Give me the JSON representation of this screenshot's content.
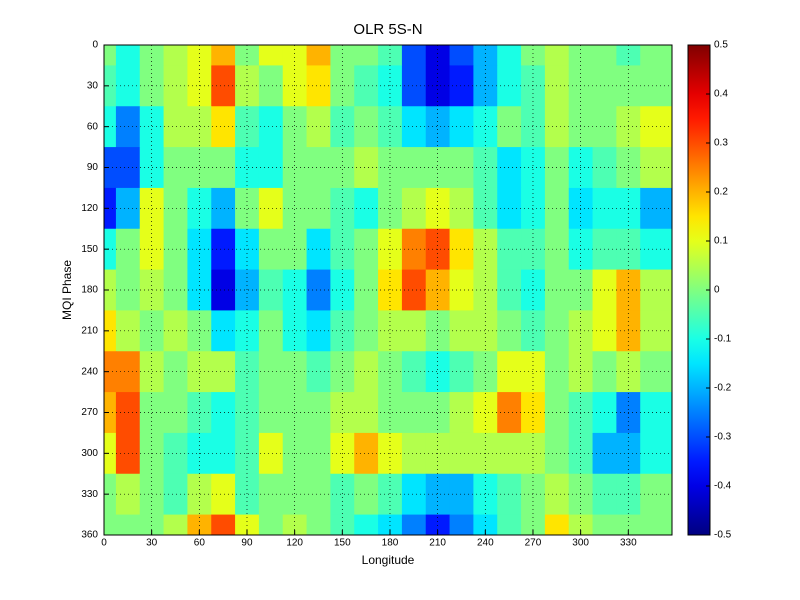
{
  "chart_data": {
    "type": "contour",
    "title": "OLR 5S-N",
    "x_label": "Longitude",
    "y_label": "MQI Phase",
    "x": [
      0,
      15,
      30,
      45,
      60,
      75,
      90,
      105,
      120,
      135,
      150,
      165,
      180,
      195,
      210,
      225,
      240,
      255,
      270,
      285,
      300,
      315,
      330,
      345
    ],
    "y": [
      0,
      30,
      60,
      90,
      120,
      150,
      180,
      210,
      240,
      270,
      300,
      330,
      360
    ],
    "z": [
      [
        0,
        -0.1,
        0,
        0.05,
        0.1,
        0.2,
        0,
        0.1,
        0.1,
        0.2,
        0,
        0,
        -0.05,
        -0.3,
        -0.4,
        -0.3,
        -0.2,
        -0.1,
        0,
        0.05,
        0,
        0,
        -0.05,
        0
      ],
      [
        -0.05,
        -0.1,
        0,
        0.05,
        0.1,
        0.3,
        0.05,
        0,
        0.1,
        0.15,
        0,
        -0.05,
        -0.1,
        -0.3,
        -0.4,
        -0.35,
        -0.2,
        -0.1,
        -0.05,
        0.05,
        0,
        0,
        0,
        0
      ],
      [
        -0.1,
        -0.25,
        -0.1,
        0.05,
        0.05,
        0.15,
        -0.05,
        -0.1,
        0,
        0.05,
        -0.05,
        0,
        -0.05,
        -0.15,
        -0.2,
        -0.15,
        -0.1,
        0,
        -0.05,
        0.05,
        0,
        0,
        0.05,
        0.1
      ],
      [
        -0.3,
        -0.3,
        -0.1,
        0,
        0,
        0,
        -0.1,
        -0.1,
        0,
        0,
        0,
        0.05,
        0,
        0,
        0,
        0,
        -0.05,
        -0.15,
        -0.1,
        0,
        -0.1,
        -0.05,
        0,
        0.05
      ],
      [
        -0.35,
        -0.2,
        0.1,
        0,
        -0.1,
        -0.2,
        0,
        0.1,
        0,
        0,
        -0.05,
        -0.1,
        0,
        0.05,
        0.1,
        0.05,
        -0.05,
        -0.15,
        -0.1,
        0,
        -0.15,
        -0.1,
        -0.1,
        -0.2
      ],
      [
        -0.1,
        0,
        0.1,
        0,
        -0.15,
        -0.35,
        -0.15,
        0,
        0,
        -0.15,
        -0.05,
        0,
        0.1,
        0.25,
        0.3,
        0.15,
        0.05,
        -0.05,
        -0.05,
        0,
        -0.1,
        -0.05,
        -0.05,
        -0.1
      ],
      [
        0.05,
        0,
        0.05,
        0,
        -0.15,
        -0.4,
        -0.2,
        -0.05,
        -0.1,
        -0.25,
        -0.1,
        0,
        0.15,
        0.3,
        0.2,
        0.1,
        0.05,
        -0.05,
        -0.1,
        0,
        0,
        0.1,
        0.2,
        0.05
      ],
      [
        0.15,
        0.05,
        0,
        0.05,
        0,
        -0.15,
        -0.1,
        0,
        -0.1,
        -0.15,
        -0.05,
        0,
        0.05,
        0.05,
        0,
        0.05,
        0.05,
        0,
        -0.05,
        0,
        0.05,
        0.1,
        0.2,
        0.05
      ],
      [
        0.25,
        0.25,
        0.05,
        0,
        0.05,
        0.05,
        -0.05,
        0,
        0,
        -0.05,
        0,
        0.05,
        0,
        -0.05,
        -0.1,
        -0.05,
        0,
        0.1,
        0.1,
        0,
        0.05,
        0,
        0.05,
        0
      ],
      [
        0.2,
        0.3,
        0,
        0,
        -0.05,
        -0.1,
        -0.05,
        0,
        0,
        0,
        0.05,
        0.05,
        0,
        0,
        0,
        0.05,
        0.1,
        0.25,
        0.15,
        0,
        -0.05,
        -0.1,
        -0.25,
        -0.1
      ],
      [
        0.1,
        0.3,
        0,
        -0.05,
        -0.1,
        -0.1,
        -0.05,
        0.1,
        0,
        0,
        0.1,
        0.2,
        0.1,
        0.05,
        0.05,
        0.05,
        0.05,
        0.05,
        0.05,
        0,
        -0.05,
        -0.2,
        -0.2,
        -0.1
      ],
      [
        0,
        0.05,
        0,
        -0.05,
        0.05,
        0.1,
        -0.05,
        0,
        0,
        0,
        -0.05,
        0,
        -0.05,
        -0.15,
        -0.2,
        -0.2,
        -0.1,
        -0.05,
        0,
        0.05,
        0,
        -0.05,
        -0.05,
        0
      ],
      [
        0,
        0,
        0,
        0.05,
        0.2,
        0.3,
        0.1,
        0,
        0.05,
        0,
        -0.05,
        -0.1,
        -0.15,
        -0.25,
        -0.35,
        -0.25,
        -0.15,
        -0.05,
        0,
        0.15,
        0.05,
        0,
        0,
        0
      ]
    ],
    "xlim": [
      0,
      357.5
    ],
    "xticks": [
      0,
      30,
      60,
      90,
      120,
      150,
      180,
      210,
      240,
      270,
      300,
      330
    ],
    "ylim": [
      0,
      360
    ],
    "yticks": [
      0,
      30,
      60,
      90,
      120,
      150,
      180,
      210,
      240,
      270,
      300,
      330,
      360
    ],
    "y_reversed": true,
    "clim": [
      -0.5,
      0.5
    ],
    "cticks": [
      -0.5,
      -0.4,
      -0.3,
      -0.2,
      -0.1,
      0,
      0.1,
      0.2,
      0.3,
      0.4,
      0.5
    ],
    "colormap": "jet",
    "grid": true
  }
}
